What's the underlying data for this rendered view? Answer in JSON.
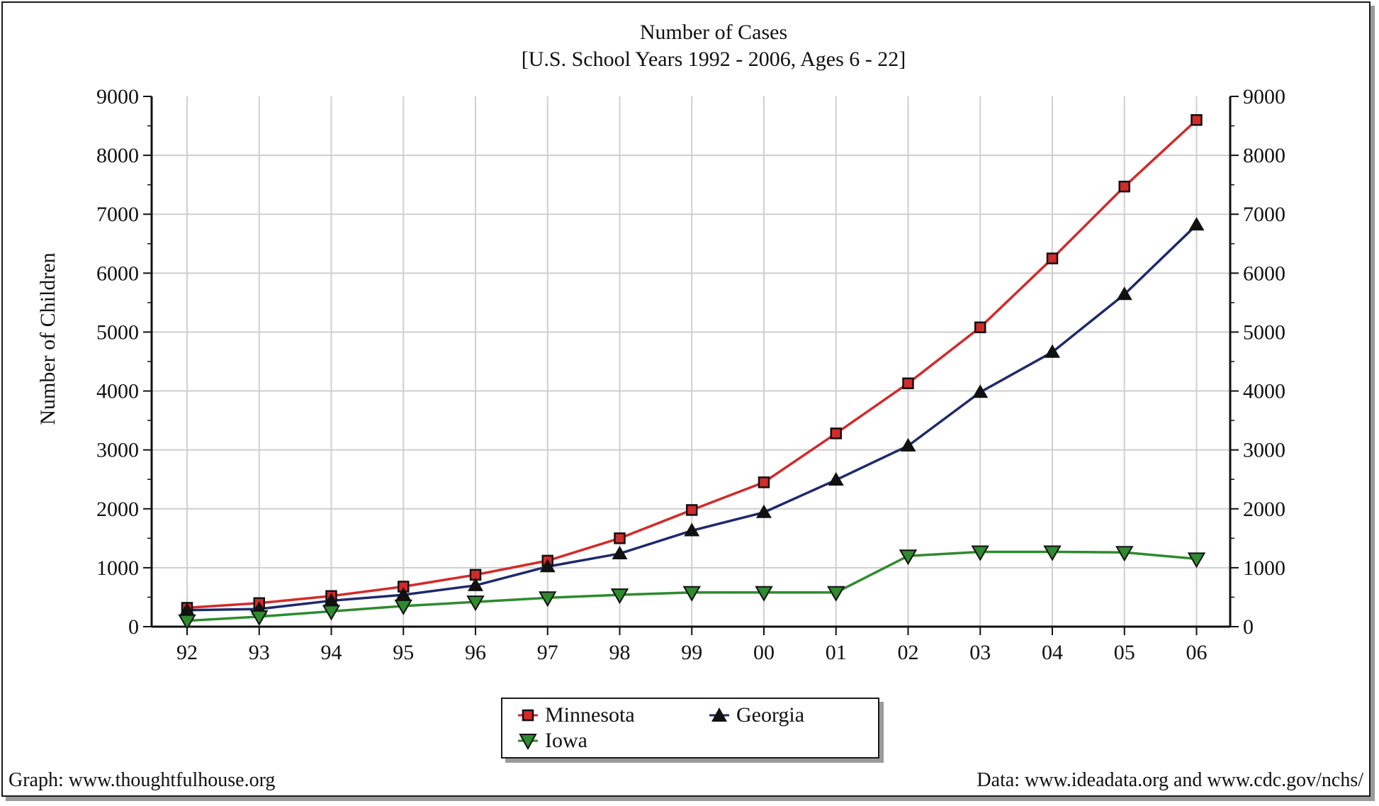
{
  "chart_data": {
    "type": "line",
    "title": "Number of Cases",
    "subtitle": "[U.S. School Years 1992 - 2006, Ages 6 - 22]",
    "ylabel": "Number of Children",
    "xlabel": "",
    "categories": [
      "92",
      "93",
      "94",
      "95",
      "96",
      "97",
      "98",
      "99",
      "00",
      "01",
      "02",
      "03",
      "04",
      "05",
      "06"
    ],
    "ylim": [
      0,
      9000
    ],
    "yticks": [
      0,
      1000,
      2000,
      3000,
      4000,
      5000,
      6000,
      7000,
      8000,
      9000
    ],
    "grid": true,
    "legend_position": "bottom-center",
    "series": [
      {
        "name": "Minnesota",
        "color": "#d42a2a",
        "marker": "square",
        "values": [
          320,
          400,
          520,
          680,
          880,
          1120,
          1500,
          1980,
          2450,
          3280,
          4130,
          5080,
          6250,
          7470,
          8600
        ]
      },
      {
        "name": "Georgia",
        "color": "#1f2a6b",
        "marker": "triangle-up",
        "values": [
          280,
          300,
          440,
          540,
          700,
          1020,
          1240,
          1630,
          1940,
          2490,
          3070,
          3980,
          4660,
          5640,
          6820
        ]
      },
      {
        "name": "Iowa",
        "color": "#2e8b2e",
        "marker": "triangle-down",
        "values": [
          100,
          170,
          260,
          350,
          420,
          490,
          540,
          580,
          580,
          580,
          1200,
          1270,
          1270,
          1260,
          1150
        ]
      }
    ]
  },
  "credits": {
    "left": "Graph: www.thoughtfulhouse.org",
    "right": "Data: www.ideadata.org and www.cdc.gov/nchs/"
  }
}
